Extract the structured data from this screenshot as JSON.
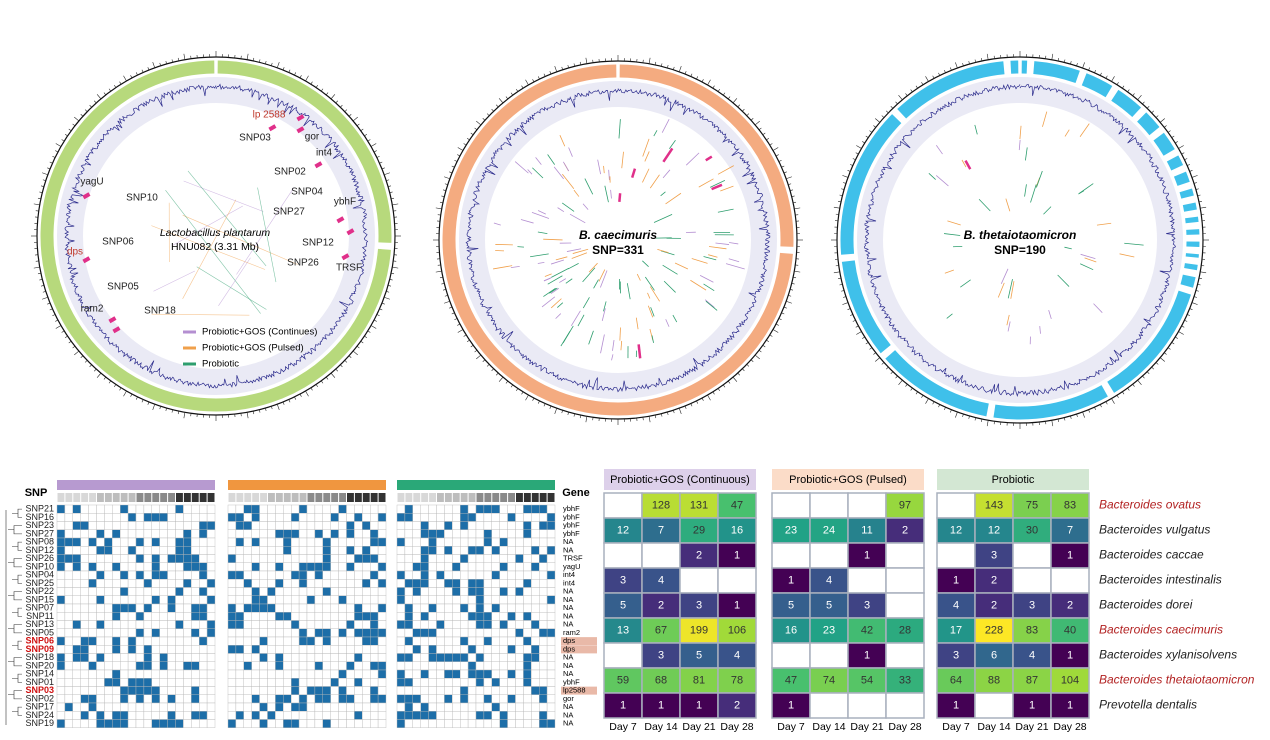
{
  "panels": [
    {
      "organism": "Lactobacillus plantarum",
      "label": "HNU082 (3.31 Mb)",
      "ring_color": "#b7d97c",
      "genes": [
        {
          "label": "lp 2588",
          "color": "#c0392b"
        },
        {
          "label": "gor",
          "color": "#222222"
        },
        {
          "label": "SNP03",
          "color": "#222222"
        },
        {
          "label": "int4",
          "color": "#222222"
        },
        {
          "label": "SNP02",
          "color": "#222222"
        },
        {
          "label": "SNP04",
          "color": "#222222"
        },
        {
          "label": "ybhF",
          "color": "#222222"
        },
        {
          "label": "SNP27",
          "color": "#222222"
        },
        {
          "label": "yagU",
          "color": "#222222"
        },
        {
          "label": "SNP10",
          "color": "#222222"
        },
        {
          "label": "SNP06",
          "color": "#222222"
        },
        {
          "label": "dps",
          "color": "#c0392b"
        },
        {
          "label": "SNP12",
          "color": "#222222"
        },
        {
          "label": "SNP26",
          "color": "#222222"
        },
        {
          "label": "TRSF",
          "color": "#222222"
        },
        {
          "label": "SNP05",
          "color": "#222222"
        },
        {
          "label": "ram2",
          "color": "#222222"
        },
        {
          "label": "SNP18",
          "color": "#222222"
        }
      ],
      "legend": [
        {
          "name": "Probiotic+GOS (Continues)",
          "color": "#b48fd1"
        },
        {
          "name": "Probiotic+GOS (Pulsed)",
          "color": "#f0a04b"
        },
        {
          "name": "Probiotic",
          "color": "#2e9e6e"
        }
      ]
    },
    {
      "title": "B. caecimuris",
      "subtitle": "SNP=331",
      "ring_color": "#f4ab80"
    },
    {
      "title": "B. thetaiotaomicron",
      "subtitle": "SNP=190",
      "ring_color": "#3fc0ea"
    }
  ],
  "snp_matrix": {
    "header_snp": "SNP",
    "header_gene": "Gene",
    "groups": [
      {
        "color": "#b79ad0"
      },
      {
        "color": "#f0963f"
      },
      {
        "color": "#2aa878"
      }
    ],
    "rows": [
      {
        "snp": "SNP21",
        "gene": "ybhF"
      },
      {
        "snp": "SNP16",
        "gene": "ybhF"
      },
      {
        "snp": "SNP23",
        "gene": "ybhF"
      },
      {
        "snp": "SNP27",
        "gene": "ybhF"
      },
      {
        "snp": "SNP08",
        "gene": "NA"
      },
      {
        "snp": "SNP12",
        "gene": "NA"
      },
      {
        "snp": "SNP26",
        "gene": "TRSF"
      },
      {
        "snp": "SNP10",
        "gene": "yagU"
      },
      {
        "snp": "SNP04",
        "gene": "int4"
      },
      {
        "snp": "SNP25",
        "gene": "int4"
      },
      {
        "snp": "SNP22",
        "gene": "NA"
      },
      {
        "snp": "SNP15",
        "gene": "NA"
      },
      {
        "snp": "SNP07",
        "gene": "NA"
      },
      {
        "snp": "SNP11",
        "gene": "NA"
      },
      {
        "snp": "SNP13",
        "gene": "NA"
      },
      {
        "snp": "SNP05",
        "gene": "ram2"
      },
      {
        "snp": "SNP06",
        "gene": "dps",
        "highlight": true
      },
      {
        "snp": "SNP09",
        "gene": "dps",
        "highlight": true
      },
      {
        "snp": "SNP18",
        "gene": "NA"
      },
      {
        "snp": "SNP20",
        "gene": "NA"
      },
      {
        "snp": "SNP14",
        "gene": "NA"
      },
      {
        "snp": "SNP01",
        "gene": "ybhF"
      },
      {
        "snp": "SNP03",
        "gene": "lp2588",
        "highlight": true
      },
      {
        "snp": "SNP02",
        "gene": "gor"
      },
      {
        "snp": "SNP17",
        "gene": "NA"
      },
      {
        "snp": "SNP24",
        "gene": "NA"
      },
      {
        "snp": "SNP19",
        "gene": "NA"
      }
    ]
  },
  "heatmaps": {
    "days": [
      "Day 7",
      "Day 14",
      "Day 21",
      "Day 28"
    ],
    "species": [
      {
        "name": "Bacteroides ovatus",
        "color": "#b22222"
      },
      {
        "name": "Bacteroides vulgatus",
        "color": "#222222"
      },
      {
        "name": "Bacteroides caccae",
        "color": "#222222"
      },
      {
        "name": "Bacteroides intestinalis",
        "color": "#222222"
      },
      {
        "name": "Bacteroides dorei",
        "color": "#222222"
      },
      {
        "name": "Bacteroides caecimuris",
        "color": "#b22222"
      },
      {
        "name": "Bacteroides xylanisolvens",
        "color": "#222222"
      },
      {
        "name": "Bacteroides thetaiotaomicron",
        "color": "#b22222"
      },
      {
        "name": "Prevotella dentalis",
        "color": "#222222"
      }
    ],
    "groups": [
      {
        "title": "Probiotic+GOS (Continuous)",
        "color": "#ddd0ea",
        "values": [
          [
            null,
            128,
            131,
            47
          ],
          [
            12,
            7,
            29,
            16
          ],
          [
            null,
            null,
            2,
            1
          ],
          [
            3,
            4,
            null,
            null
          ],
          [
            5,
            2,
            3,
            1
          ],
          [
            13,
            67,
            199,
            106
          ],
          [
            null,
            3,
            5,
            4
          ],
          [
            59,
            68,
            81,
            78
          ],
          [
            1,
            1,
            1,
            2
          ]
        ]
      },
      {
        "title": "Probiotic+GOS (Pulsed)",
        "color": "#fbdcc8",
        "values": [
          [
            null,
            null,
            null,
            97
          ],
          [
            23,
            24,
            11,
            2
          ],
          [
            null,
            null,
            1,
            null
          ],
          [
            1,
            4,
            null,
            null
          ],
          [
            5,
            5,
            3,
            null
          ],
          [
            16,
            23,
            42,
            28
          ],
          [
            null,
            null,
            1,
            null
          ],
          [
            47,
            74,
            54,
            33
          ],
          [
            1,
            null,
            null,
            null
          ]
        ]
      },
      {
        "title": "Probiotic",
        "color": "#d3e7d3",
        "values": [
          [
            null,
            143,
            75,
            83
          ],
          [
            12,
            12,
            30,
            7
          ],
          [
            null,
            3,
            null,
            1
          ],
          [
            1,
            2,
            null,
            null
          ],
          [
            4,
            2,
            3,
            2
          ],
          [
            17,
            228,
            83,
            40
          ],
          [
            3,
            6,
            4,
            1
          ],
          [
            64,
            88,
            87,
            104
          ],
          [
            1,
            null,
            1,
            1
          ]
        ]
      }
    ]
  }
}
